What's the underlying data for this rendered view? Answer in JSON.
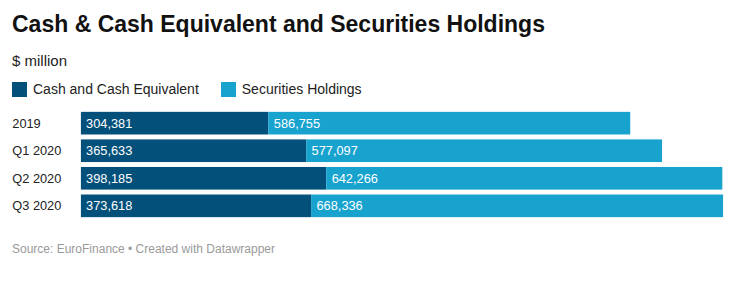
{
  "chart_data": {
    "type": "bar",
    "orientation": "horizontal",
    "stacked": true,
    "data_labels": true,
    "tick_labels": "y",
    "legend": "top-left",
    "title": "Cash & Cash Equivalent and Securities Holdings",
    "subtitle": "$ million",
    "caption": "Source: EuroFinance • Created with Datawrapper",
    "categories": [
      "2019",
      "Q1 2020",
      "Q2 2020",
      "Q3 2020"
    ],
    "xlim": [
      0,
      1041954
    ],
    "series": [
      {
        "name": "Cash and Cash Equivalent",
        "color": "#03507b",
        "values": [
          304381,
          365633,
          398185,
          373618
        ],
        "value_labels": [
          "304,381",
          "365,633",
          "398,185",
          "373,618"
        ]
      },
      {
        "name": "Securities Holdings",
        "color": "#18a3cf",
        "values": [
          586755,
          577097,
          642266,
          668336
        ],
        "value_labels": [
          "586,755",
          "577,097",
          "642,266",
          "668,336"
        ]
      }
    ]
  }
}
